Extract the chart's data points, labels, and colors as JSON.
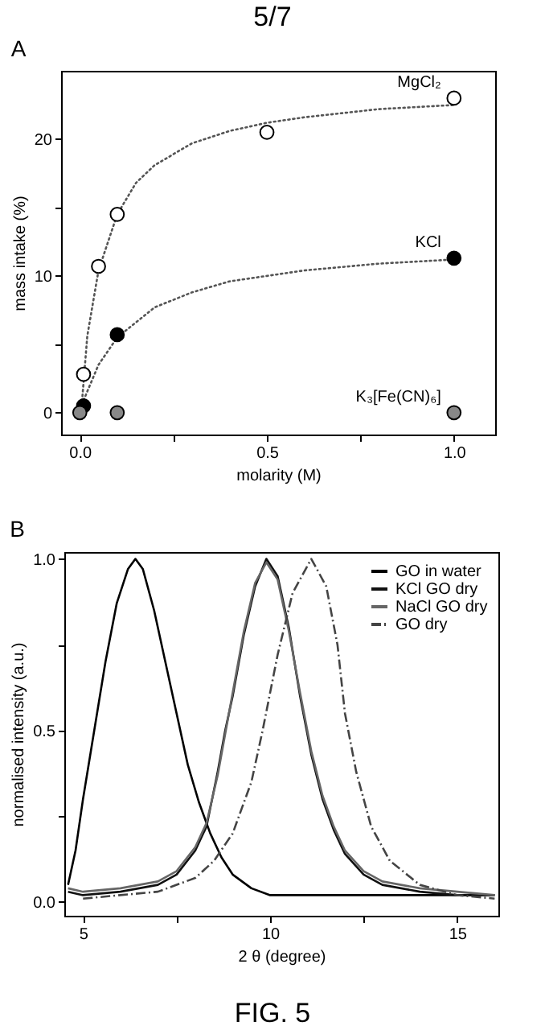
{
  "chart_data": [
    {
      "type": "scatter",
      "title": "A",
      "xlabel": "molarity (M)",
      "ylabel": "mass intake (%)",
      "annotations": [
        "5/7"
      ],
      "xlim": [
        -0.05,
        1.11
      ],
      "ylim": [
        -1.6,
        25
      ],
      "xticks": [
        {
          "value": 0,
          "label": "0.0"
        },
        {
          "value": 0.25,
          "label": null
        },
        {
          "value": 0.5,
          "label": "0.5"
        },
        {
          "value": 0.75,
          "label": null
        },
        {
          "value": 1,
          "label": "1.0"
        }
      ],
      "yticks": [
        0,
        {
          "value": 5,
          "label": null
        },
        10,
        {
          "value": 15,
          "label": null
        },
        20
      ],
      "grid": false,
      "legend": false,
      "marker": "circle",
      "series": [
        {
          "type": "line",
          "marker": "none",
          "color": "#555555",
          "line_style": "dotted",
          "x": [
            0.005,
            0.02,
            0.05,
            0.1,
            0.15,
            0.2,
            0.3,
            0.4,
            0.5,
            0.6,
            0.8,
            1.0
          ],
          "values": [
            0.5,
            5.6,
            10.4,
            14.5,
            16.8,
            18.1,
            19.7,
            20.6,
            21.2,
            21.6,
            22.2,
            22.5
          ]
        },
        {
          "type": "line",
          "marker": "none",
          "color": "#555555",
          "line_style": "dotted",
          "x": [
            0.01,
            0.05,
            0.1,
            0.2,
            0.3,
            0.4,
            0.5,
            0.6,
            0.8,
            1.0
          ],
          "values": [
            0.9,
            3.5,
            5.5,
            7.7,
            8.8,
            9.6,
            10.0,
            10.4,
            10.9,
            11.2
          ]
        },
        {
          "name": "MgCl₂",
          "color": "#ffffff",
          "x": [
            0.01,
            0.05,
            0.1,
            0.5,
            1.0
          ],
          "values": [
            2.8,
            10.7,
            14.5,
            20.5,
            23
          ]
        },
        {
          "name": "KCl",
          "color": "#000000",
          "x": [
            0.01,
            0.1,
            1.0
          ],
          "values": [
            0.5,
            5.7,
            11.3
          ]
        },
        {
          "name": "K₃[Fe(CN)₆]",
          "color": "#888888",
          "x": [
            0,
            0.1,
            1.0
          ],
          "values": [
            0,
            0,
            0
          ]
        }
      ]
    },
    {
      "type": "line",
      "title": "B",
      "xlabel": "2 θ (degree)",
      "ylabel": "normalised intensity (a.u.)",
      "annotations": [
        "FIG. 5"
      ],
      "xlim": [
        4.5,
        16.1
      ],
      "ylim": [
        -0.04,
        1.02
      ],
      "xticks": [
        5,
        {
          "value": 7.5,
          "label": null
        },
        10,
        {
          "value": 12.5,
          "label": null
        },
        15
      ],
      "yticks": [
        {
          "value": 0,
          "label": "0.0"
        },
        {
          "value": 0.25,
          "label": null
        },
        {
          "value": 0.5,
          "label": "0.5"
        },
        {
          "value": 0.75,
          "label": null
        },
        {
          "value": 1,
          "label": "1.0"
        }
      ],
      "grid": false,
      "legend": "top right",
      "series": [
        {
          "name": "GO in water",
          "color": "#000000",
          "line_style": "solid",
          "x": [
            4.6,
            4.8,
            5.0,
            5.3,
            5.6,
            5.9,
            6.2,
            6.4,
            6.6,
            6.9,
            7.2,
            7.5,
            7.8,
            8.1,
            8.4,
            8.7,
            9.0,
            9.5,
            10,
            11,
            12,
            13,
            14,
            15,
            16
          ],
          "values": [
            0.05,
            0.15,
            0.3,
            0.5,
            0.7,
            0.87,
            0.97,
            1.0,
            0.97,
            0.85,
            0.7,
            0.55,
            0.4,
            0.29,
            0.2,
            0.13,
            0.08,
            0.04,
            0.02,
            0.02,
            0.02,
            0.02,
            0.02,
            0.02,
            0.02
          ]
        },
        {
          "name": "KCl GO dry",
          "color": "#111111",
          "line_style": "solid",
          "x": [
            4.6,
            5,
            6,
            7,
            7.5,
            8,
            8.3,
            8.6,
            8.8,
            9.0,
            9.3,
            9.6,
            9.9,
            10.2,
            10.5,
            10.8,
            11.1,
            11.4,
            11.7,
            12.0,
            12.5,
            13,
            14,
            15,
            16
          ],
          "values": [
            0.03,
            0.02,
            0.03,
            0.05,
            0.08,
            0.15,
            0.22,
            0.38,
            0.5,
            0.6,
            0.78,
            0.92,
            1.0,
            0.95,
            0.8,
            0.6,
            0.43,
            0.3,
            0.21,
            0.14,
            0.08,
            0.05,
            0.03,
            0.02,
            0.02
          ]
        },
        {
          "name": "NaCl GO dry",
          "color": "#666666",
          "line_style": "solid",
          "x": [
            4.6,
            5,
            6,
            7,
            7.5,
            8,
            8.3,
            8.6,
            8.8,
            9.0,
            9.3,
            9.6,
            9.9,
            10.2,
            10.5,
            10.8,
            11.1,
            11.4,
            11.7,
            12.0,
            12.5,
            13,
            14,
            15,
            16
          ],
          "values": [
            0.04,
            0.03,
            0.04,
            0.06,
            0.09,
            0.16,
            0.23,
            0.37,
            0.49,
            0.61,
            0.79,
            0.93,
            0.99,
            0.94,
            0.79,
            0.61,
            0.44,
            0.31,
            0.22,
            0.15,
            0.09,
            0.06,
            0.04,
            0.03,
            0.02
          ]
        },
        {
          "name": "GO dry",
          "color": "#444444",
          "line_style": "dashed",
          "x": [
            5,
            7,
            8,
            8.5,
            9,
            9.5,
            9.8,
            10.2,
            10.6,
            11.1,
            11.5,
            11.8,
            12.0,
            12.3,
            12.7,
            13.2,
            14,
            15,
            16
          ],
          "values": [
            0.01,
            0.03,
            0.07,
            0.12,
            0.2,
            0.35,
            0.5,
            0.72,
            0.9,
            1.0,
            0.92,
            0.75,
            0.55,
            0.38,
            0.22,
            0.12,
            0.05,
            0.02,
            0.01
          ]
        }
      ]
    }
  ]
}
